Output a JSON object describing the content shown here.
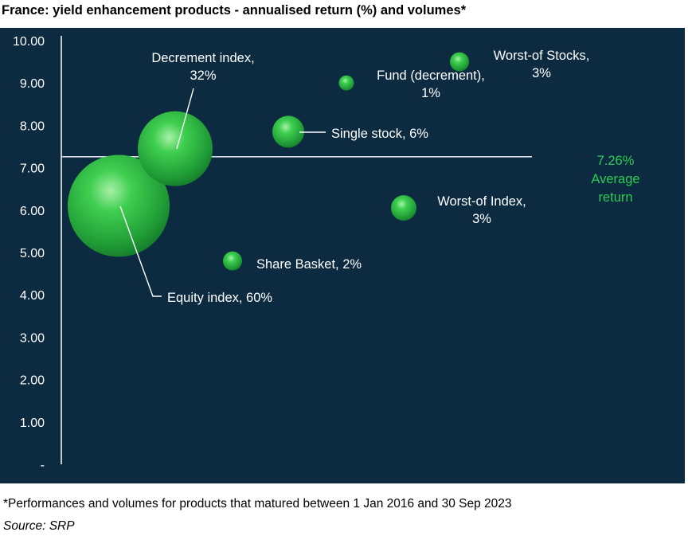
{
  "title": "France: yield enhancement products - annualised return (%) and volumes*",
  "footnote": "*Performances and volumes for products that matured between 1 Jan 2016 and 30 Sep 2023",
  "source": "Source: SRP",
  "colors": {
    "background": "#0c2b40",
    "bubble": "#36c447",
    "average_label": "#2ecc52",
    "text": "#ffffff"
  },
  "chart_data": {
    "type": "scatter",
    "variant": "bubble",
    "ylim": [
      0,
      10
    ],
    "y_tick_labels": [
      "-",
      "1.00",
      "2.00",
      "3.00",
      "4.00",
      "5.00",
      "6.00",
      "7.00",
      "8.00",
      "9.00",
      "10.00"
    ],
    "grid": false,
    "x_axis_labels_shown": false,
    "points": [
      {
        "label_lines": [
          "Equity index, 60%"
        ],
        "name": "Equity index",
        "volume_pct": 60,
        "y": 6.1
      },
      {
        "label_lines": [
          "Decrement index,",
          "32%"
        ],
        "name": "Decrement index",
        "volume_pct": 32,
        "y": 7.45
      },
      {
        "label_lines": [
          "Single stock, 6%"
        ],
        "name": "Single stock",
        "volume_pct": 6,
        "y": 7.85
      },
      {
        "label_lines": [
          "Share Basket, 2%"
        ],
        "name": "Share Basket",
        "volume_pct": 2,
        "y": 4.8
      },
      {
        "label_lines": [
          "Fund (decrement),",
          "1%"
        ],
        "name": "Fund (decrement)",
        "volume_pct": 1,
        "y": 9.0
      },
      {
        "label_lines": [
          "Worst-of Index,",
          "3%"
        ],
        "name": "Worst-of Index",
        "volume_pct": 3,
        "y": 6.05
      },
      {
        "label_lines": [
          "Worst-of Stocks,",
          "3%"
        ],
        "name": "Worst-of Stocks",
        "volume_pct": 3,
        "y": 9.5
      }
    ],
    "average": {
      "y": 7.26,
      "label_lines": [
        "7.26%",
        "Average",
        "return"
      ]
    }
  }
}
